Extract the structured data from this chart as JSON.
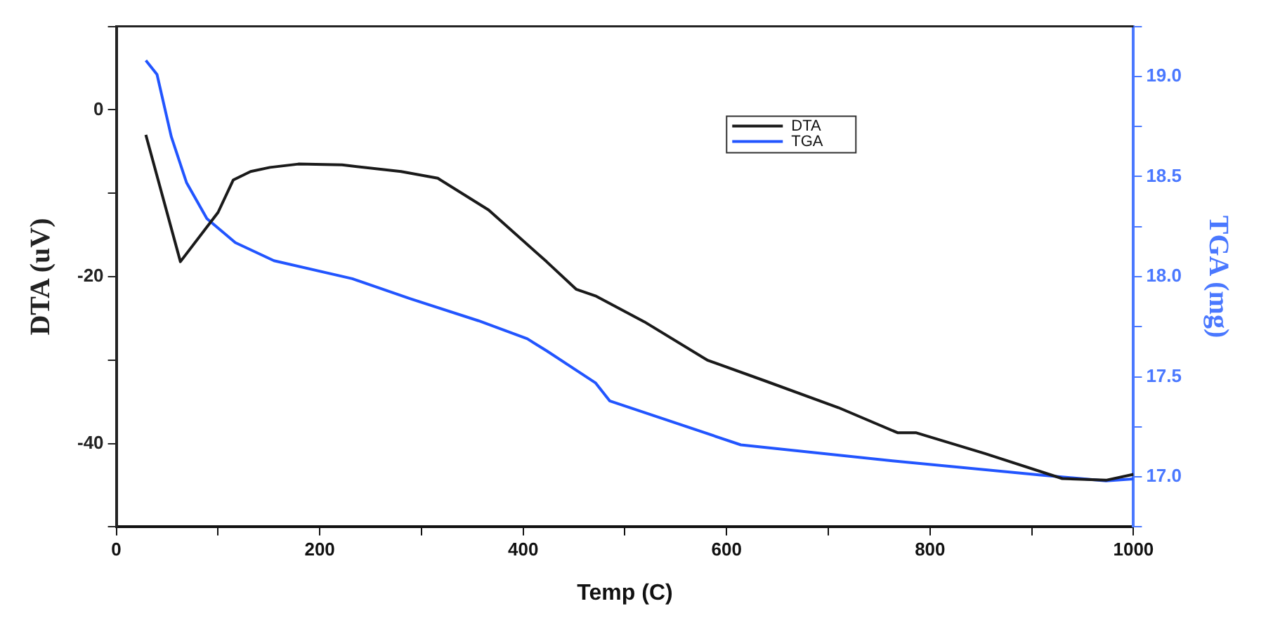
{
  "chart_data": {
    "type": "line",
    "xlabel": "Temp (C)",
    "ylabel": "DTA (uV)",
    "y2label": "TGA (mg)",
    "xlim": [
      0,
      1000
    ],
    "xticks": [
      0,
      {
        "value": 100,
        "label": null
      },
      200,
      {
        "value": 300,
        "label": null
      },
      400,
      {
        "value": 500,
        "label": null
      },
      600,
      {
        "value": 700,
        "label": null
      },
      800,
      {
        "value": 900,
        "label": null
      },
      1000
    ],
    "ylim": [
      -50,
      10
    ],
    "yticks": [
      {
        "value": -50,
        "label": null
      },
      -40,
      {
        "value": -30,
        "label": null
      },
      -20,
      {
        "value": -10,
        "label": null
      },
      0,
      {
        "value": 10,
        "label": null
      }
    ],
    "y2lim": [
      16.75,
      19.25
    ],
    "y2ticks": [
      {
        "value": 16.75,
        "label": null
      },
      {
        "value": 17,
        "label": "17.0"
      },
      {
        "value": 17.25,
        "label": null
      },
      {
        "value": 17.5,
        "label": "17.5"
      },
      {
        "value": 17.75,
        "label": null
      },
      {
        "value": 18,
        "label": "18.0"
      },
      {
        "value": 18.25,
        "label": null
      },
      {
        "value": 18.5,
        "label": "18.5"
      },
      {
        "value": 18.75,
        "label": null
      },
      {
        "value": 19,
        "label": "19.0"
      },
      {
        "value": 19.25,
        "label": null
      }
    ],
    "grid": false,
    "legend": "top",
    "marker": "none",
    "line_style": "solid",
    "series": [
      {
        "name": "DTA",
        "color": "#1a1a1a",
        "x": [
          29,
          63,
          100,
          115,
          132,
          151,
          179,
          222,
          280,
          316,
          366,
          423,
          452,
          471,
          519,
          581,
          638,
          710,
          768,
          786,
          854,
          930,
          973,
          1000
        ],
        "values": [
          -3.0,
          -18.2,
          -12.3,
          -8.4,
          -7.4,
          -6.9,
          -6.5,
          -6.6,
          -7.4,
          -8.2,
          -12.0,
          -18.2,
          -21.5,
          -22.3,
          -25.4,
          -30.0,
          -32.5,
          -35.7,
          -38.7,
          -38.7,
          -41.2,
          -44.2,
          -44.4,
          -43.7
        ]
      },
      {
        "name": "TGA",
        "color": "#2255ff",
        "axis": "y2",
        "x": [
          29,
          40,
          54,
          69,
          89,
          117,
          155,
          232,
          289,
          356,
          404,
          423,
          471,
          485,
          614,
          763,
          907,
          973,
          1000
        ],
        "values": [
          19.08,
          19.01,
          18.7,
          18.47,
          18.29,
          18.17,
          18.08,
          17.99,
          17.89,
          17.78,
          17.69,
          17.63,
          17.47,
          17.38,
          17.16,
          17.08,
          17.01,
          16.98,
          16.99
        ]
      }
    ]
  }
}
